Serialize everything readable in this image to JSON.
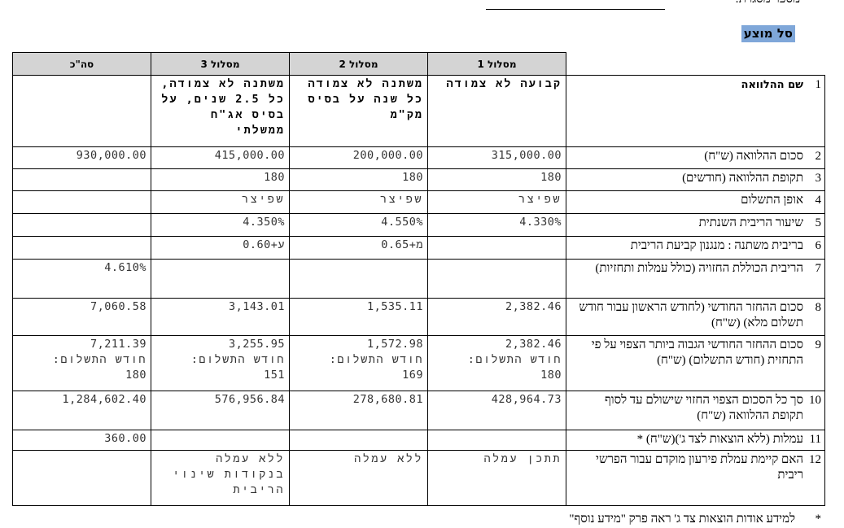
{
  "frame_number_label": "מספר מסגרת:",
  "section_title": "סל מוצע",
  "section_title_bg": "#7fa7d9",
  "columns": [
    "מסלול 1",
    "מסלול 2",
    "מסלול 3",
    "סה\"כ"
  ],
  "rows": [
    {
      "num": "1",
      "label": "שם ההלוואה",
      "bold": true,
      "values": [
        "קבועה לא צמודה",
        "משתנה לא צמודה כל שנה על בסיס מק\"מ",
        "משתנה לא צמודה, כל 2.5 שנים, על בסיס אג\"ח ממשלתי",
        ""
      ]
    },
    {
      "num": "2",
      "label": "סכום ההלוואה (ש\"ח)",
      "values": [
        "315,000.00",
        "200,000.00",
        "415,000.00",
        "930,000.00"
      ]
    },
    {
      "num": "3",
      "label": "תקופת ההלוואה (חודשים)",
      "values": [
        "180",
        "180",
        "180",
        ""
      ]
    },
    {
      "num": "4",
      "label": "אופן התשלום",
      "values": [
        "שפיצר",
        "שפיצר",
        "שפיצר",
        ""
      ]
    },
    {
      "num": "5",
      "label": "שיעור הריבית השנתית",
      "values": [
        "4.330%",
        "4.550%",
        "4.350%",
        ""
      ]
    },
    {
      "num": "6",
      "label": "בריבית משתנה : מנגנון קביעת הריבית",
      "values": [
        "",
        "מ+0.65",
        "ע+0.60",
        ""
      ]
    },
    {
      "num": "7",
      "label": "הריבית הכוללת החזויה (כולל עמלות ותחזיות)",
      "values": [
        "",
        "",
        "",
        "4.610%"
      ]
    },
    {
      "num": "8",
      "label": "סכום ההחזר החודשי (לחודש הראשון עבור חודש תשלום מלא) (ש\"ח)",
      "values": [
        "2,382.46",
        "1,535.11",
        "3,143.01",
        "7,060.58"
      ]
    },
    {
      "num": "9",
      "label": "סכום ההחזר החודשי הגבוה ביותר הצפוי על פי התחזית (חודש התשלום) (ש\"ח)",
      "values": [
        {
          "amount": "2,382.46",
          "month_label": "חודש התשלום:",
          "month": "180"
        },
        {
          "amount": "1,572.98",
          "month_label": "חודש התשלום:",
          "month": "169"
        },
        {
          "amount": "3,255.95",
          "month_label": "חודש התשלום:",
          "month": "151"
        },
        {
          "amount": "7,211.39",
          "month_label": "חודש התשלום:",
          "month": "180"
        }
      ]
    },
    {
      "num": "10",
      "label": "סך כל הסכום הצפוי החזוי שישולם עד לסוף תקופת ההלוואה (ש\"ח)",
      "values": [
        "428,964.73",
        "278,680.81",
        "576,956.84",
        "1,284,602.40"
      ]
    },
    {
      "num": "11",
      "label": "עמלות (ללא הוצאות לצד ג')(ש\"ח) *",
      "values": [
        "",
        "",
        "",
        "360.00"
      ]
    },
    {
      "num": "12",
      "label": "האם קיימת עמלת פירעון מוקדם עבור הפרשי ריבית",
      "values": [
        "תתכן עמלה",
        "ללא עמלה",
        "ללא עמלה בנקודות שינוי הריבית",
        ""
      ]
    }
  ],
  "footnote": {
    "marker": "*",
    "text": "למידע אודות הוצאות צד ג' ראה פרק \"מידע נוסף\""
  }
}
